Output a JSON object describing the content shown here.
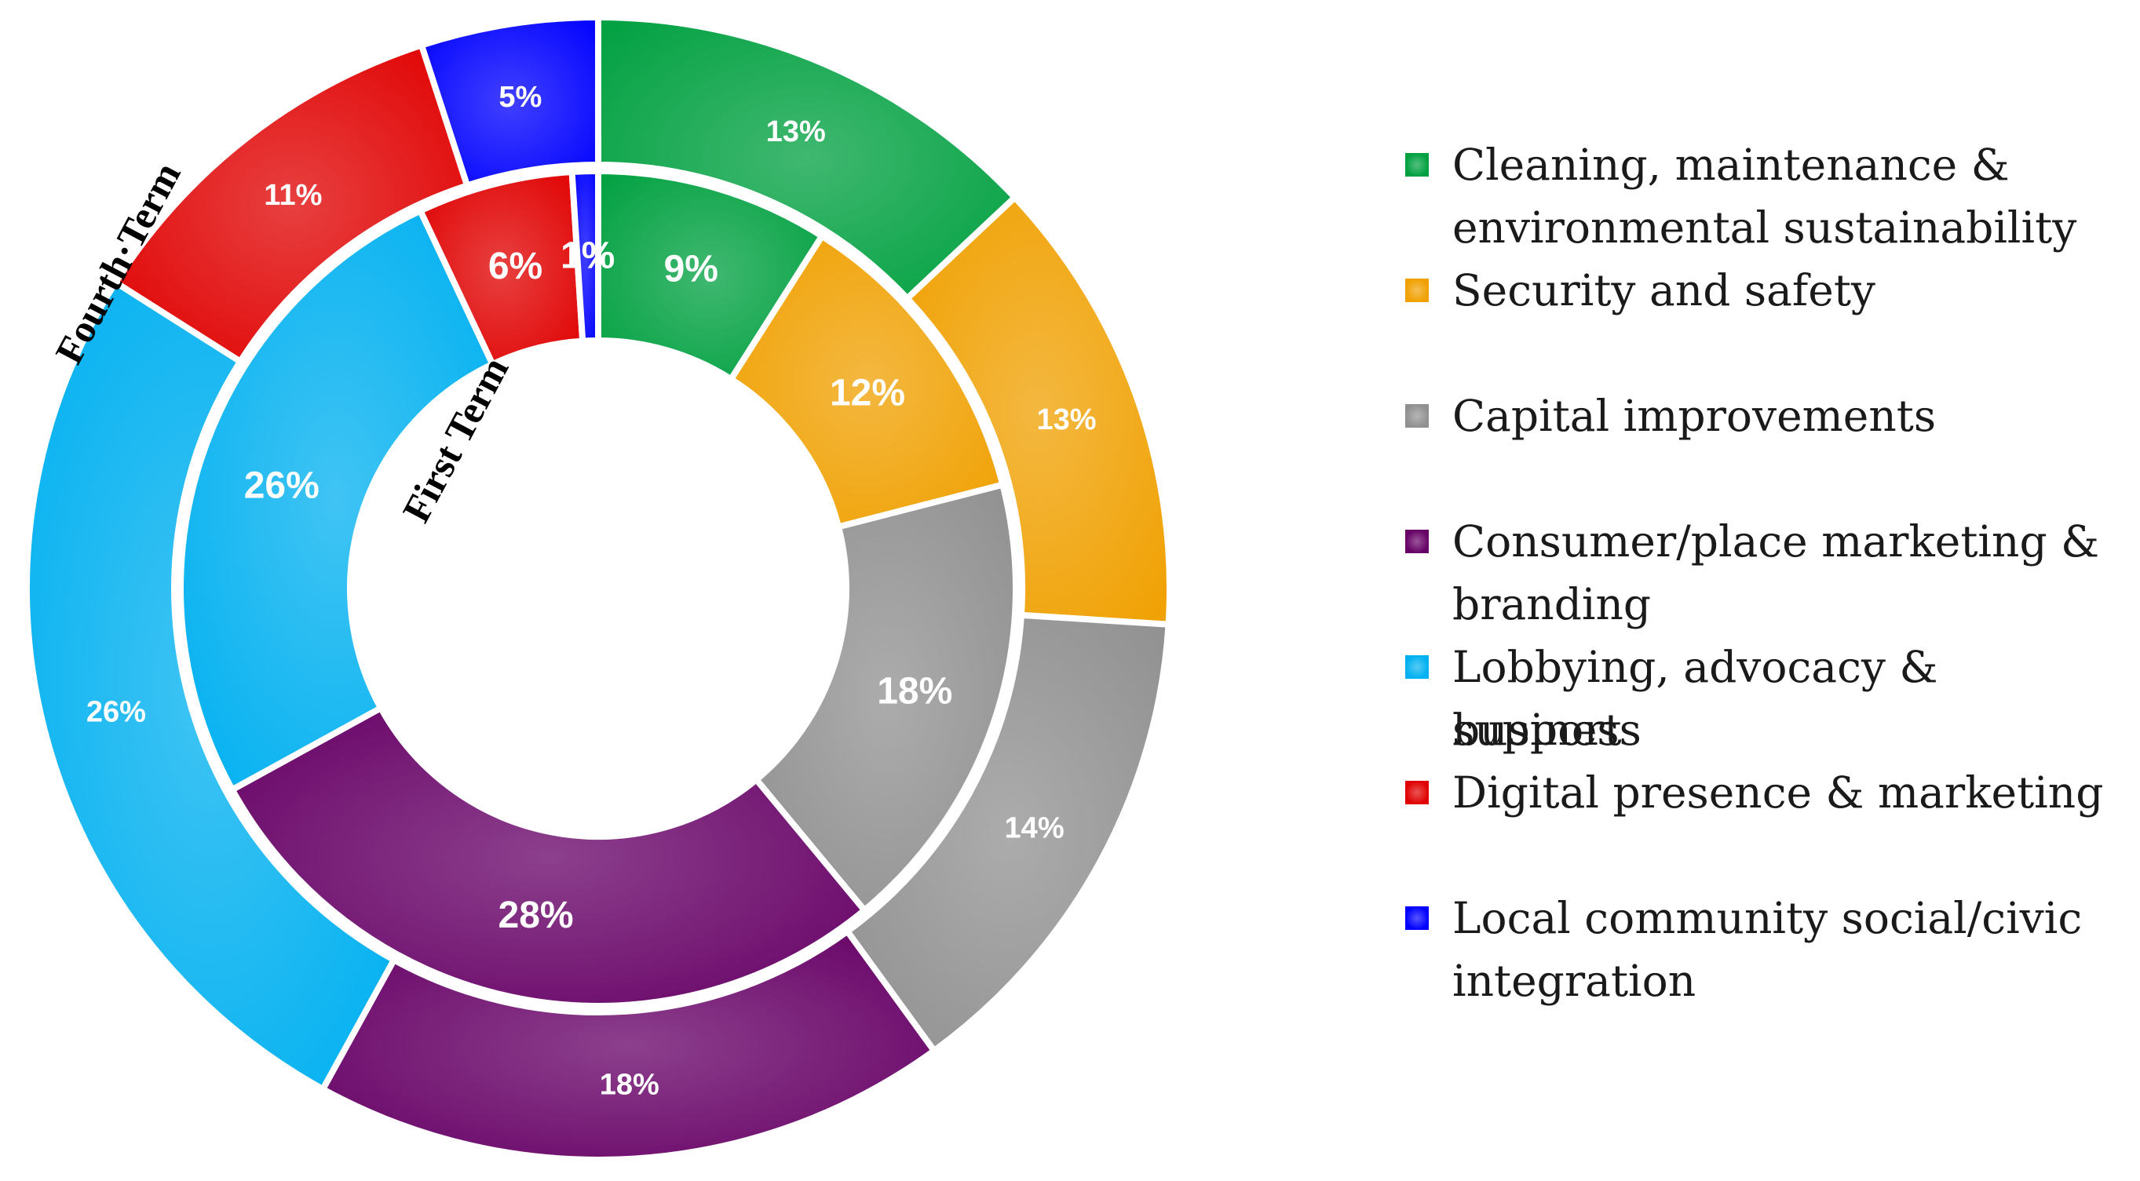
{
  "chart_data": {
    "type": "donut",
    "rings": [
      {
        "name": "First Term",
        "values": [
          9,
          12,
          18,
          28,
          26,
          6,
          1
        ],
        "labels": [
          "9%",
          "12%",
          "18%",
          "28%",
          "26%",
          "6%",
          "1%"
        ]
      },
      {
        "name": "Fourth·Term",
        "values": [
          13,
          13,
          14,
          18,
          26,
          11,
          5
        ],
        "labels": [
          "13%",
          "13%",
          "14%",
          "18%",
          "26%",
          "11%",
          "5%"
        ]
      }
    ],
    "categories": [
      "Cleaning, maintenance & environmental sustainability",
      "Security and safety",
      "Capital improvements",
      "Consumer/place marketing & branding",
      "Lobbying, advocacy & business support",
      "Digital presence & marketing",
      "Local community social/civic integration"
    ],
    "legend": [
      {
        "lines": [
          "Cleaning, maintenance &",
          "environmental sustainability"
        ],
        "color": "#00a040"
      },
      {
        "lines": [
          "Security and safety"
        ],
        "color": "#f0a000"
      },
      {
        "lines": [
          "Capital improvements"
        ],
        "color": "#909090"
      },
      {
        "lines": [
          "Consumer/place marketing &",
          "branding"
        ],
        "color": "#660066"
      },
      {
        "lines": [
          "Lobbying, advocacy & business",
          "support"
        ],
        "color": "#00b0f0"
      },
      {
        "lines": [
          "Digital presence & marketing"
        ],
        "color": "#e00000"
      },
      {
        "lines": [
          "Local community social/civic",
          "integration"
        ],
        "color": "#0000ff"
      }
    ],
    "legend_position": "right"
  }
}
